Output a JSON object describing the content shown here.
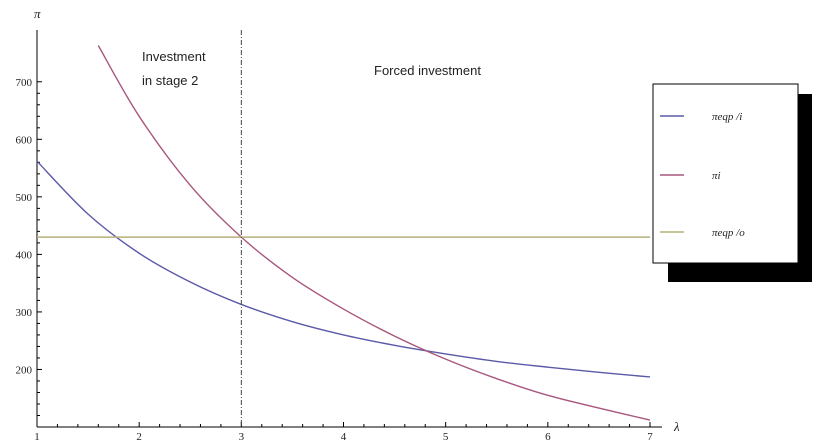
{
  "chart_data": {
    "type": "line",
    "title": "",
    "xlabel": "λ",
    "ylabel": "π",
    "xlim": [
      1,
      7
    ],
    "ylim": [
      100,
      790
    ],
    "x_ticks": [
      1,
      2,
      3,
      4,
      5,
      6,
      7
    ],
    "y_ticks": [
      200,
      300,
      400,
      500,
      600,
      700
    ],
    "grid": false,
    "legend_position": "right",
    "series": [
      {
        "name": "πeqp /i",
        "color": "#5a5aa8",
        "x": [
          1.0,
          1.5,
          2.0,
          2.5,
          3.0,
          3.5,
          4.0,
          4.5,
          5.0,
          5.5,
          6.0,
          6.5,
          7.0
        ],
        "y": [
          562,
          470,
          402,
          352,
          313,
          283,
          260,
          242,
          227,
          214,
          204,
          195,
          187
        ]
      },
      {
        "name": "πi",
        "color": "#a8567e",
        "x": [
          1.6,
          2.0,
          2.5,
          3.0,
          3.5,
          4.0,
          4.5,
          5.0,
          5.5,
          6.0,
          6.5,
          7.0
        ],
        "y": [
          763,
          640,
          520,
          430,
          360,
          305,
          258,
          218,
          184,
          155,
          133,
          112
        ]
      },
      {
        "name": "πeqp /o",
        "color": "#b5b07c",
        "x": [
          1.0,
          7.0
        ],
        "y": [
          430,
          430
        ]
      }
    ],
    "vertical_line": {
      "x": 3,
      "style": "dash-dot",
      "color": "#444444"
    },
    "annotations": [
      {
        "text": "Investment",
        "x": 3.4,
        "y": 755
      },
      {
        "text": "in stage 2",
        "x": 3.3,
        "y": 720
      },
      {
        "text": "Forced investment",
        "x": 4.1,
        "y": 732
      }
    ]
  }
}
